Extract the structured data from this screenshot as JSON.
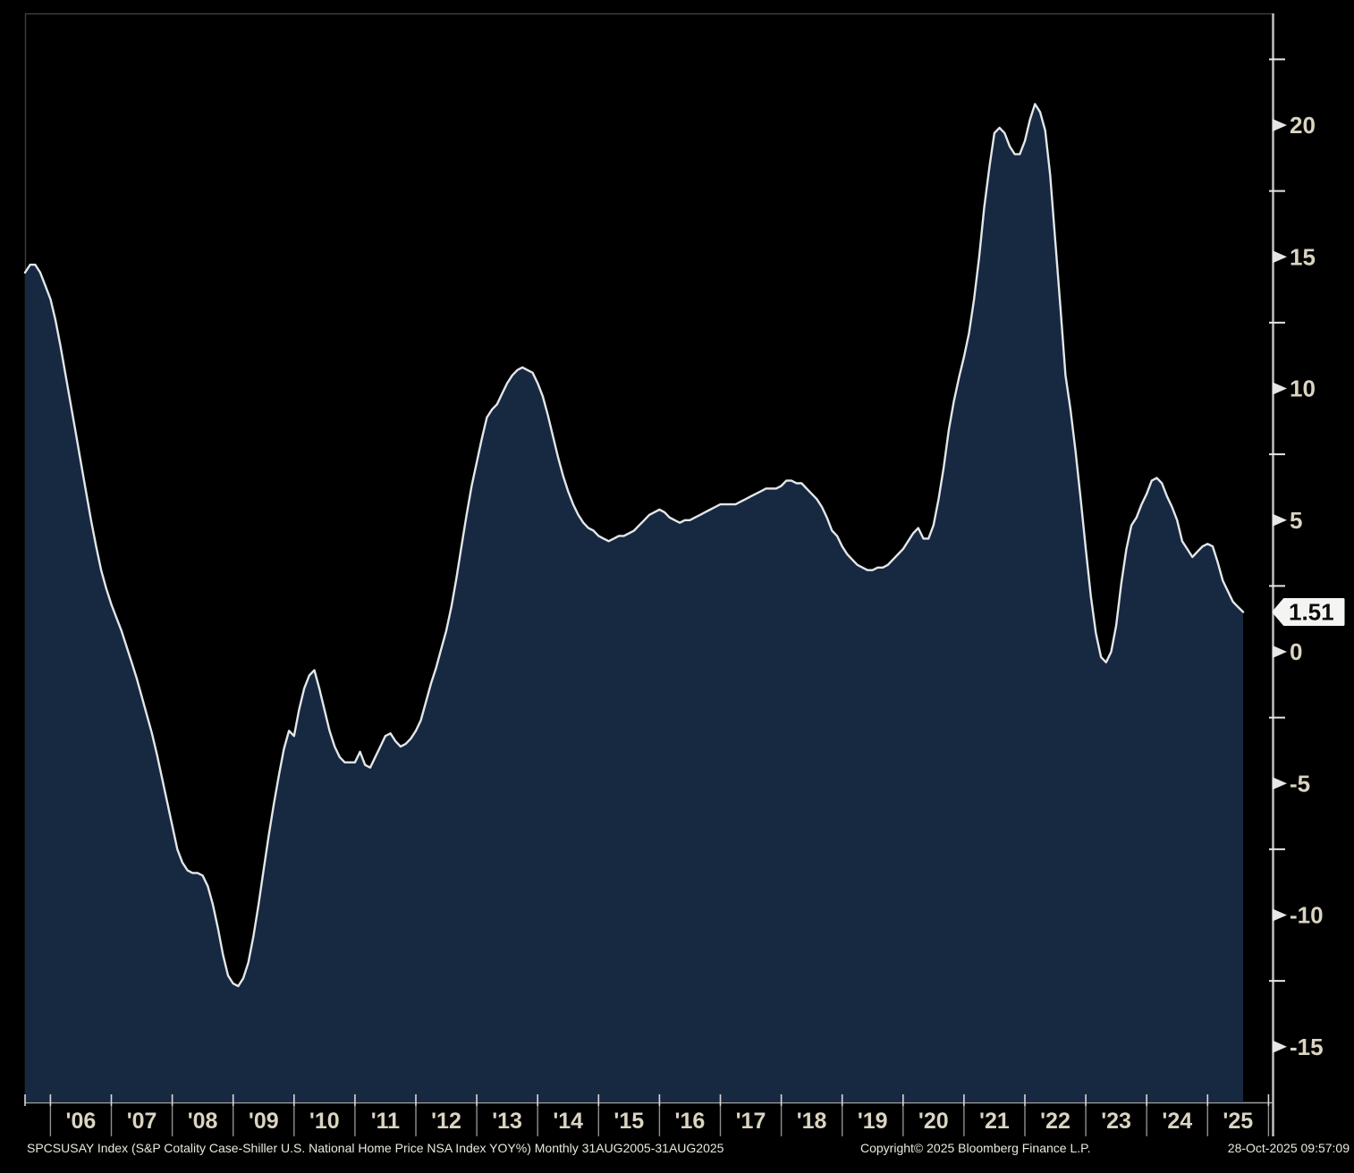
{
  "window": {
    "title": "SPCSUSAY Index - Bloomberg chart"
  },
  "chart_data": {
    "type": "area",
    "title": "SPCSUSAY Index (S&P Cotality Case-Shiller U.S. National Home Price NSA Index YOY%) Monthly 31AUG2005-31AUG2025",
    "grid": false,
    "legend": false,
    "x_axis": {
      "frequency": "monthly",
      "start": "2005-08",
      "end": "2025-08",
      "year_labels": [
        "'06",
        "'07",
        "'08",
        "'09",
        "'10",
        "'11",
        "'12",
        "'13",
        "'14",
        "'15",
        "'16",
        "'17",
        "'18",
        "'19",
        "'20",
        "'21",
        "'22",
        "'23",
        "'24",
        "'25"
      ]
    },
    "y_axis": {
      "side": "right",
      "major_ticks": [
        20,
        15,
        10,
        5,
        0,
        -5,
        -10,
        -15
      ],
      "minor_tick_step": 2.5,
      "visible_range": [
        -17.1,
        24.2
      ]
    },
    "series": [
      {
        "name": "S&P Cotality Case-Shiller U.S. National Home Price NSA Index YOY%",
        "values": [
          14.4,
          14.7,
          14.7,
          14.4,
          13.9,
          13.4,
          12.6,
          11.6,
          10.5,
          9.4,
          8.3,
          7.2,
          6.1,
          5.0,
          4.0,
          3.1,
          2.4,
          1.8,
          1.3,
          0.8,
          0.2,
          -0.4,
          -1.0,
          -1.7,
          -2.4,
          -3.1,
          -3.9,
          -4.8,
          -5.7,
          -6.6,
          -7.5,
          -8.0,
          -8.3,
          -8.4,
          -8.4,
          -8.5,
          -8.9,
          -9.6,
          -10.5,
          -11.5,
          -12.3,
          -12.6,
          -12.7,
          -12.4,
          -11.8,
          -10.8,
          -9.6,
          -8.3,
          -7.0,
          -5.8,
          -4.7,
          -3.7,
          -3.0,
          -3.2,
          -2.2,
          -1.4,
          -0.9,
          -0.7,
          -1.4,
          -2.2,
          -3.0,
          -3.6,
          -4.0,
          -4.2,
          -4.2,
          -4.2,
          -3.8,
          -4.3,
          -4.4,
          -4.0,
          -3.6,
          -3.2,
          -3.1,
          -3.4,
          -3.6,
          -3.5,
          -3.3,
          -3.0,
          -2.6,
          -1.9,
          -1.2,
          -0.6,
          0.1,
          0.8,
          1.7,
          2.8,
          4.0,
          5.2,
          6.3,
          7.2,
          8.1,
          8.9,
          9.2,
          9.4,
          9.8,
          10.2,
          10.5,
          10.7,
          10.8,
          10.7,
          10.6,
          10.2,
          9.7,
          9.0,
          8.2,
          7.4,
          6.7,
          6.1,
          5.6,
          5.2,
          4.9,
          4.7,
          4.6,
          4.4,
          4.3,
          4.2,
          4.3,
          4.4,
          4.4,
          4.5,
          4.6,
          4.8,
          5.0,
          5.2,
          5.3,
          5.4,
          5.3,
          5.1,
          5.0,
          4.9,
          5.0,
          5.0,
          5.1,
          5.2,
          5.3,
          5.4,
          5.5,
          5.6,
          5.6,
          5.6,
          5.6,
          5.7,
          5.8,
          5.9,
          6.0,
          6.1,
          6.2,
          6.2,
          6.2,
          6.3,
          6.5,
          6.5,
          6.4,
          6.4,
          6.2,
          6.0,
          5.8,
          5.5,
          5.1,
          4.6,
          4.4,
          4.0,
          3.7,
          3.5,
          3.3,
          3.2,
          3.1,
          3.1,
          3.2,
          3.2,
          3.3,
          3.5,
          3.7,
          3.9,
          4.2,
          4.5,
          4.7,
          4.3,
          4.3,
          4.8,
          5.8,
          7.0,
          8.4,
          9.5,
          10.4,
          11.2,
          12.1,
          13.4,
          15.0,
          16.9,
          18.4,
          19.7,
          19.9,
          19.7,
          19.2,
          18.9,
          18.9,
          19.4,
          20.2,
          20.8,
          20.5,
          19.8,
          18.1,
          15.6,
          13.1,
          10.5,
          9.2,
          7.6,
          5.8,
          3.9,
          2.1,
          0.7,
          -0.2,
          -0.4,
          0.0,
          1.0,
          2.6,
          3.9,
          4.8,
          5.1,
          5.6,
          6.0,
          6.5,
          6.6,
          6.4,
          5.9,
          5.5,
          5.0,
          4.2,
          3.9,
          3.6,
          3.8,
          4.0,
          4.1,
          4.0,
          3.4,
          2.7,
          2.3,
          1.9,
          1.7,
          1.51
        ]
      }
    ],
    "last_point": {
      "value": 1.51,
      "label": "1.51",
      "date": "31AUG2025"
    }
  },
  "colors": {
    "background": "#000000",
    "area_fill": "#172841",
    "line": "#e3e7ea",
    "axis_line": "#c3c8cc",
    "tick_mark": "#e6e6e6",
    "tick_label": "#dad4c2",
    "x_separator": "#8f8f8f",
    "x_stub": "#d8d8d8",
    "frame": "#3d3d3d",
    "bottom_line": "#9aa0a4",
    "tag_bg": "#f4f4f2",
    "tag_text": "#0a0a0a",
    "footer_text": "#eae8de"
  },
  "footer": {
    "description": "SPCSUSAY Index (S&P Cotality Case-Shiller U.S. National Home Price NSA Index YOY%) Monthly 31AUG2005-31AUG2025",
    "copyright": "Copyright© 2025 Bloomberg Finance L.P.",
    "timestamp": "28-Oct-2025 09:57:09"
  }
}
